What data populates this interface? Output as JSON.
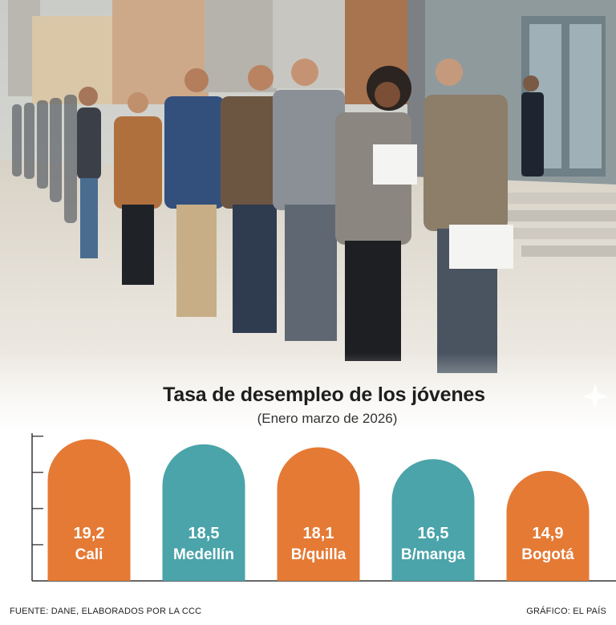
{
  "chart_data": {
    "type": "bar",
    "title": "Tasa de desempleo de los jóvenes",
    "subtitle": "(Enero marzo de 2026)",
    "categories": [
      "Cali",
      "Medellín",
      "B/quilla",
      "B/manga",
      "Bogotá"
    ],
    "values": [
      19.2,
      18.5,
      18.1,
      16.5,
      14.9
    ],
    "value_labels": [
      "19,2",
      "18,5",
      "18,1",
      "16,5",
      "14,9"
    ],
    "bar_colors": [
      "#e57a35",
      "#4aa4a9",
      "#e57a35",
      "#4aa4a9",
      "#e57a35"
    ],
    "xlabel": "",
    "ylabel": "",
    "ylim": [
      0,
      20
    ],
    "grid": false,
    "legend": "none"
  },
  "footer": {
    "source": "FUENTE:  DANE, ELABORADOS POR LA CCC",
    "credit": "GRÁFICO: EL PAÍS"
  },
  "photo": {
    "description_icon": "people-queue-photo-icon"
  }
}
